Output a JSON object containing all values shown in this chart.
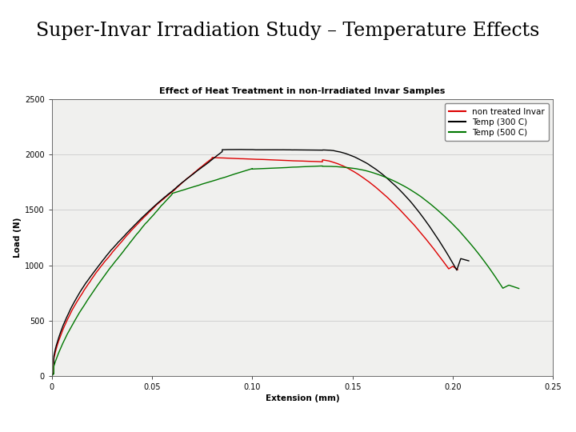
{
  "title": "Super-Invar Irradiation Study – Temperature Effects",
  "inner_title": "Effect of Heat Treatment in non-Irradiated Invar Samples",
  "xlabel": "Extension (mm)",
  "ylabel": "Load (N)",
  "xlim": [
    0,
    0.25
  ],
  "ylim": [
    0,
    2500
  ],
  "xticks": [
    0,
    0.05,
    0.1,
    0.15,
    0.2,
    0.25
  ],
  "yticks": [
    0,
    500,
    1000,
    1500,
    2000,
    2500
  ],
  "legend_labels": [
    "non treated Invar",
    "Temp (300 C)",
    "Temp (500 C)"
  ],
  "line_colors": [
    "#dd0000",
    "#000000",
    "#007700"
  ],
  "bg_color": "#ffffff",
  "title_fontsize": 17,
  "inner_title_fontsize": 8,
  "axis_label_fontsize": 7.5,
  "tick_fontsize": 7,
  "legend_fontsize": 7.5,
  "outer_axes": [
    0.09,
    0.13,
    0.87,
    0.64
  ],
  "chart_bg": "#f0f0ee"
}
